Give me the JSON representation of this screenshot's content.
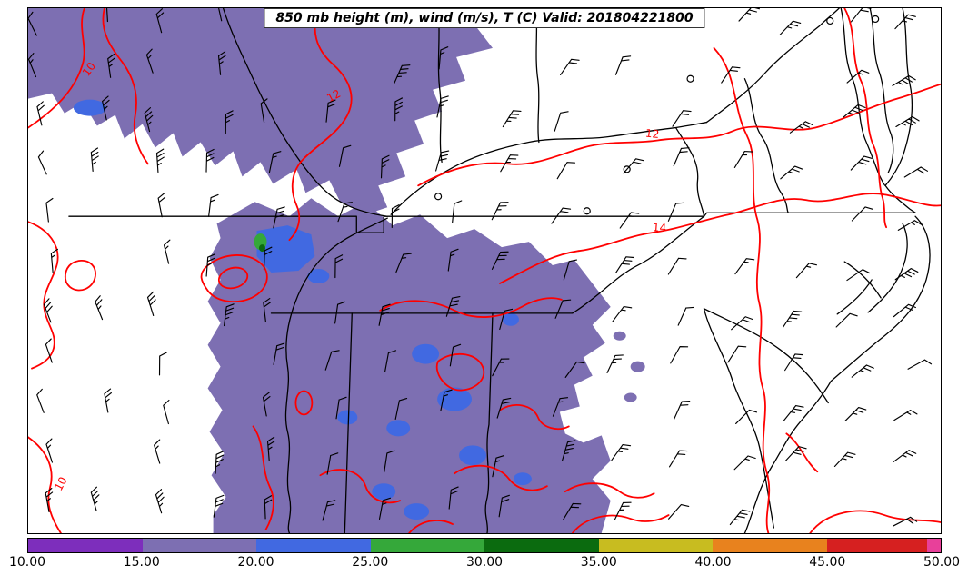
{
  "title": "850 mb height (m), wind (m/s), T (C) Valid: 201804221800",
  "colorbar": {
    "ticks": [
      "10.00",
      "15.00",
      "20.00",
      "25.00",
      "30.00",
      "35.00",
      "40.00",
      "45.00",
      "50.00"
    ],
    "segments": [
      {
        "label": "10-15",
        "color": "#7d2ebc",
        "width_pct": 12.5
      },
      {
        "label": "15-20",
        "color": "#7d6fb2",
        "width_pct": 12.5
      },
      {
        "label": "20-25",
        "color": "#4169e1",
        "width_pct": 12.5
      },
      {
        "label": "25-30",
        "color": "#35a83a",
        "width_pct": 12.5
      },
      {
        "label": "30-35",
        "color": "#0b6b0f",
        "width_pct": 12.5
      },
      {
        "label": "35-40",
        "color": "#c8bc20",
        "width_pct": 12.5
      },
      {
        "label": "40-45",
        "color": "#e8821e",
        "width_pct": 12.5
      },
      {
        "label": "45-50",
        "color": "#d62020",
        "width_pct": 11.0
      },
      {
        "label": "50",
        "color": "#e8409a",
        "width_pct": 1.5
      }
    ]
  },
  "contour_labels": [
    {
      "value": "10"
    },
    {
      "value": "12"
    },
    {
      "value": "12"
    },
    {
      "value": "14"
    },
    {
      "value": "10"
    }
  ],
  "chart_data": {
    "type": "heatmap",
    "title": "850 mb height (m), wind (m/s), T (C) Valid: 201804221800",
    "valid": "201804221800",
    "fields": [
      "850 mb height (m)",
      "wind (m/s)",
      "T (C)"
    ],
    "colorbar_ticks": [
      10.0,
      15.0,
      20.0,
      25.0,
      30.0,
      35.0,
      40.0,
      45.0,
      50.0
    ],
    "colorbar_colors": [
      "#7d2ebc",
      "#7d6fb2",
      "#4169e1",
      "#35a83a",
      "#0b6b0f",
      "#c8bc20",
      "#e8821e",
      "#d62020",
      "#e8409a"
    ],
    "shaded_fill_colors_on_map": [
      "#7d6fb2",
      "#4169e1",
      "#35a83a",
      "#0b6b0f"
    ],
    "contour_line_color": "#ff0000",
    "visible_contour_labels": [
      10,
      12,
      12,
      14,
      10
    ],
    "wind_symbols": "barbs",
    "map_outline_color": "#000000",
    "legend_position": "bottom",
    "grid": false
  }
}
